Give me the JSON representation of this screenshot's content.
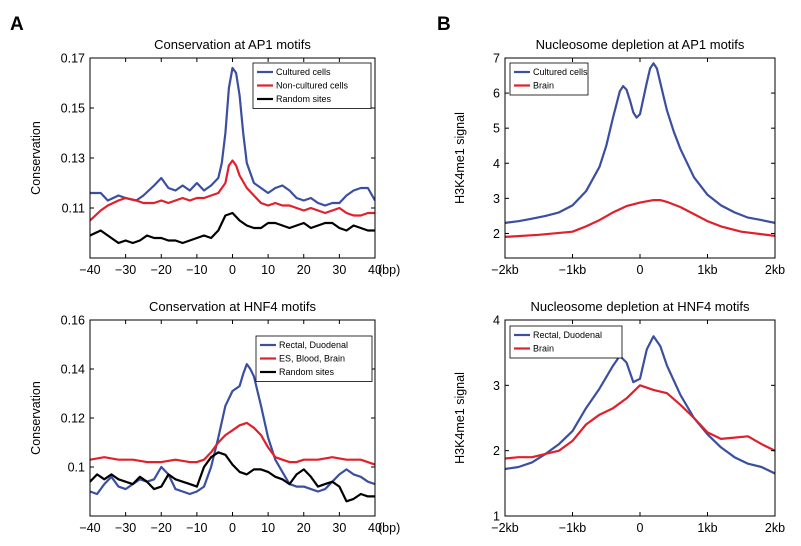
{
  "panel_labels": [
    "A",
    "B"
  ],
  "chart_data": [
    {
      "type": "line",
      "title": "Conservation at AP1 motifs",
      "xlabel": "",
      "ylabel": "Conservation",
      "x_unit_label": "(bp)",
      "xlim": [
        -40,
        40
      ],
      "ylim": [
        0.09,
        0.17
      ],
      "xticks": [
        -40,
        -30,
        -20,
        -10,
        0,
        10,
        20,
        30,
        40
      ],
      "xtick_labels": [
        "−40",
        "−30",
        "−20",
        "−10",
        "0",
        "10",
        "20",
        "30",
        "40"
      ],
      "yticks": [
        0.11,
        0.13,
        0.15,
        0.17
      ],
      "ytick_labels": [
        "0.11",
        "0.13",
        "0.15",
        "0.17"
      ],
      "legend_position": "top-right",
      "series": [
        {
          "name": "Cultured cells",
          "color": "#3b4fa0",
          "x": [
            -40,
            -37,
            -35,
            -32,
            -30,
            -27,
            -25,
            -22,
            -20,
            -18,
            -16,
            -14,
            -12,
            -10,
            -8,
            -6,
            -4,
            -3,
            -2,
            -1,
            0,
            1,
            2,
            3,
            4,
            6,
            8,
            10,
            12,
            14,
            16,
            18,
            20,
            22,
            24,
            26,
            28,
            30,
            32,
            34,
            36,
            38,
            40
          ],
          "y": [
            0.116,
            0.116,
            0.113,
            0.115,
            0.114,
            0.113,
            0.115,
            0.119,
            0.122,
            0.118,
            0.117,
            0.119,
            0.117,
            0.12,
            0.117,
            0.119,
            0.122,
            0.128,
            0.14,
            0.158,
            0.166,
            0.164,
            0.155,
            0.14,
            0.128,
            0.12,
            0.118,
            0.116,
            0.118,
            0.119,
            0.117,
            0.114,
            0.113,
            0.114,
            0.112,
            0.111,
            0.112,
            0.112,
            0.115,
            0.117,
            0.118,
            0.118,
            0.113
          ]
        },
        {
          "name": "Non-cultured cells",
          "color": "#e0202a",
          "x": [
            -40,
            -37,
            -35,
            -32,
            -30,
            -27,
            -25,
            -22,
            -20,
            -18,
            -16,
            -14,
            -12,
            -10,
            -8,
            -6,
            -4,
            -2,
            -1,
            0,
            1,
            2,
            4,
            6,
            8,
            10,
            12,
            14,
            16,
            18,
            20,
            22,
            24,
            26,
            28,
            30,
            32,
            34,
            36,
            38,
            40
          ],
          "y": [
            0.105,
            0.109,
            0.111,
            0.113,
            0.114,
            0.113,
            0.112,
            0.112,
            0.113,
            0.112,
            0.113,
            0.114,
            0.113,
            0.114,
            0.114,
            0.115,
            0.116,
            0.12,
            0.127,
            0.129,
            0.127,
            0.123,
            0.118,
            0.115,
            0.112,
            0.111,
            0.112,
            0.111,
            0.111,
            0.11,
            0.109,
            0.11,
            0.109,
            0.108,
            0.109,
            0.11,
            0.108,
            0.107,
            0.107,
            0.108,
            0.108
          ]
        },
        {
          "name": "Random sites",
          "color": "#000000",
          "x": [
            -40,
            -37,
            -35,
            -32,
            -30,
            -28,
            -26,
            -24,
            -22,
            -20,
            -18,
            -16,
            -14,
            -12,
            -10,
            -8,
            -6,
            -4,
            -2,
            0,
            2,
            4,
            6,
            8,
            10,
            12,
            14,
            16,
            18,
            20,
            22,
            24,
            26,
            28,
            30,
            32,
            34,
            36,
            38,
            40
          ],
          "y": [
            0.099,
            0.101,
            0.099,
            0.096,
            0.097,
            0.096,
            0.097,
            0.099,
            0.098,
            0.098,
            0.097,
            0.097,
            0.096,
            0.097,
            0.098,
            0.099,
            0.098,
            0.101,
            0.107,
            0.108,
            0.105,
            0.103,
            0.102,
            0.102,
            0.104,
            0.104,
            0.103,
            0.102,
            0.103,
            0.104,
            0.102,
            0.103,
            0.104,
            0.104,
            0.102,
            0.101,
            0.103,
            0.102,
            0.101,
            0.101
          ]
        }
      ]
    },
    {
      "type": "line",
      "title": "Nucleosome depletion at AP1 motifs",
      "xlabel": "",
      "ylabel": "H3K4me1 signal",
      "xlim": [
        -2000,
        2000
      ],
      "ylim": [
        1.3,
        7
      ],
      "xticks": [
        -2000,
        -1000,
        0,
        1000,
        2000
      ],
      "xtick_labels": [
        "−2kb",
        "−1kb",
        "0",
        "1kb",
        "2kb"
      ],
      "yticks": [
        2,
        3,
        4,
        5,
        6,
        7
      ],
      "ytick_labels": [
        "2",
        "3",
        "4",
        "5",
        "6",
        "7"
      ],
      "legend_position": "top-left",
      "series": [
        {
          "name": "Cultured cells",
          "color": "#3b4fa0",
          "x": [
            -2000,
            -1800,
            -1600,
            -1400,
            -1200,
            -1000,
            -800,
            -600,
            -500,
            -400,
            -300,
            -250,
            -200,
            -150,
            -100,
            -50,
            0,
            50,
            100,
            150,
            200,
            250,
            300,
            350,
            400,
            500,
            600,
            800,
            1000,
            1200,
            1400,
            1600,
            1800,
            2000
          ],
          "y": [
            2.3,
            2.35,
            2.42,
            2.5,
            2.6,
            2.8,
            3.2,
            3.9,
            4.5,
            5.3,
            6.05,
            6.2,
            6.1,
            5.8,
            5.45,
            5.3,
            5.4,
            5.85,
            6.3,
            6.7,
            6.85,
            6.7,
            6.3,
            5.9,
            5.5,
            4.9,
            4.4,
            3.6,
            3.1,
            2.8,
            2.6,
            2.45,
            2.38,
            2.3
          ]
        },
        {
          "name": "Brain",
          "color": "#e0202a",
          "x": [
            -2000,
            -1500,
            -1000,
            -800,
            -600,
            -400,
            -200,
            0,
            200,
            300,
            400,
            600,
            800,
            1000,
            1200,
            1500,
            2000
          ],
          "y": [
            1.9,
            1.96,
            2.05,
            2.2,
            2.38,
            2.6,
            2.78,
            2.88,
            2.95,
            2.95,
            2.9,
            2.75,
            2.55,
            2.35,
            2.2,
            2.05,
            1.93
          ]
        }
      ]
    },
    {
      "type": "line",
      "title": "Conservation at HNF4 motifs",
      "xlabel": "",
      "ylabel": "Conservation",
      "x_unit_label": "(bp)",
      "xlim": [
        -40,
        40
      ],
      "ylim": [
        0.08,
        0.16
      ],
      "xticks": [
        -40,
        -30,
        -20,
        -10,
        0,
        10,
        20,
        30,
        40
      ],
      "xtick_labels": [
        "−40",
        "−30",
        "−20",
        "−10",
        "0",
        "10",
        "20",
        "30",
        "40"
      ],
      "yticks": [
        0.1,
        0.12,
        0.14,
        0.16
      ],
      "ytick_labels": [
        "0.1",
        "0.12",
        "0.14",
        "0.16"
      ],
      "legend_position": "top-right",
      "series": [
        {
          "name": "Rectal, Duodenal",
          "color": "#3b4fa0",
          "x": [
            -40,
            -38,
            -36,
            -34,
            -32,
            -30,
            -28,
            -26,
            -24,
            -22,
            -20,
            -18,
            -16,
            -14,
            -12,
            -10,
            -8,
            -6,
            -4,
            -2,
            0,
            2,
            3,
            4,
            5,
            6,
            8,
            10,
            12,
            14,
            16,
            18,
            20,
            22,
            24,
            26,
            28,
            30,
            32,
            34,
            36,
            38,
            40
          ],
          "y": [
            0.09,
            0.089,
            0.093,
            0.096,
            0.092,
            0.091,
            0.093,
            0.095,
            0.094,
            0.095,
            0.1,
            0.097,
            0.091,
            0.09,
            0.089,
            0.09,
            0.092,
            0.1,
            0.112,
            0.125,
            0.131,
            0.133,
            0.138,
            0.142,
            0.14,
            0.137,
            0.125,
            0.112,
            0.103,
            0.098,
            0.093,
            0.092,
            0.092,
            0.091,
            0.09,
            0.091,
            0.094,
            0.097,
            0.099,
            0.097,
            0.096,
            0.094,
            0.093
          ]
        },
        {
          "name": "ES, Blood, Brain",
          "color": "#e0202a",
          "x": [
            -40,
            -36,
            -32,
            -28,
            -24,
            -20,
            -16,
            -12,
            -10,
            -8,
            -6,
            -4,
            -2,
            0,
            2,
            4,
            6,
            8,
            10,
            12,
            14,
            16,
            18,
            20,
            24,
            28,
            32,
            36,
            40
          ],
          "y": [
            0.103,
            0.104,
            0.103,
            0.103,
            0.102,
            0.102,
            0.103,
            0.102,
            0.102,
            0.103,
            0.106,
            0.11,
            0.113,
            0.115,
            0.117,
            0.118,
            0.116,
            0.113,
            0.108,
            0.104,
            0.103,
            0.102,
            0.102,
            0.103,
            0.103,
            0.104,
            0.103,
            0.103,
            0.101
          ]
        },
        {
          "name": "Random sites",
          "color": "#000000",
          "x": [
            -40,
            -38,
            -36,
            -34,
            -32,
            -30,
            -28,
            -26,
            -24,
            -22,
            -20,
            -18,
            -16,
            -14,
            -12,
            -10,
            -8,
            -6,
            -4,
            -2,
            0,
            2,
            4,
            6,
            8,
            10,
            12,
            14,
            16,
            18,
            20,
            22,
            24,
            26,
            28,
            30,
            32,
            34,
            36,
            38,
            40
          ],
          "y": [
            0.094,
            0.097,
            0.095,
            0.097,
            0.095,
            0.094,
            0.093,
            0.096,
            0.094,
            0.091,
            0.092,
            0.097,
            0.095,
            0.094,
            0.093,
            0.092,
            0.1,
            0.104,
            0.106,
            0.105,
            0.101,
            0.098,
            0.097,
            0.099,
            0.099,
            0.098,
            0.096,
            0.095,
            0.093,
            0.097,
            0.099,
            0.096,
            0.092,
            0.093,
            0.094,
            0.092,
            0.086,
            0.087,
            0.089,
            0.088,
            0.088
          ]
        }
      ]
    },
    {
      "type": "line",
      "title": "Nucleosome depletion at HNF4 motifs",
      "xlabel": "",
      "ylabel": "H3K4me1 signal",
      "xlim": [
        -2000,
        2000
      ],
      "ylim": [
        1,
        4
      ],
      "xticks": [
        -2000,
        -1000,
        0,
        1000,
        2000
      ],
      "xtick_labels": [
        "−2kb",
        "−1kb",
        "0",
        "1kb",
        "2kb"
      ],
      "yticks": [
        1,
        2,
        3,
        4
      ],
      "ytick_labels": [
        "1",
        "2",
        "3",
        "4"
      ],
      "legend_position": "top-left",
      "series": [
        {
          "name": "Rectal, Duodenal",
          "color": "#3b4fa0",
          "x": [
            -2000,
            -1800,
            -1600,
            -1400,
            -1200,
            -1000,
            -800,
            -600,
            -400,
            -300,
            -200,
            -100,
            0,
            100,
            200,
            300,
            400,
            600,
            800,
            1000,
            1200,
            1400,
            1600,
            1800,
            2000
          ],
          "y": [
            1.72,
            1.75,
            1.82,
            1.95,
            2.1,
            2.3,
            2.65,
            2.95,
            3.3,
            3.45,
            3.35,
            3.05,
            3.1,
            3.55,
            3.75,
            3.6,
            3.3,
            2.85,
            2.5,
            2.25,
            2.05,
            1.9,
            1.8,
            1.75,
            1.65
          ]
        },
        {
          "name": "Brain",
          "color": "#e0202a",
          "x": [
            -2000,
            -1800,
            -1600,
            -1400,
            -1200,
            -1000,
            -800,
            -600,
            -400,
            -200,
            0,
            200,
            400,
            600,
            800,
            1000,
            1200,
            1400,
            1600,
            1800,
            2000
          ],
          "y": [
            1.88,
            1.9,
            1.9,
            1.95,
            2.0,
            2.15,
            2.4,
            2.55,
            2.65,
            2.8,
            3.0,
            2.93,
            2.88,
            2.7,
            2.5,
            2.28,
            2.18,
            2.2,
            2.22,
            2.1,
            2.0
          ]
        }
      ]
    }
  ]
}
